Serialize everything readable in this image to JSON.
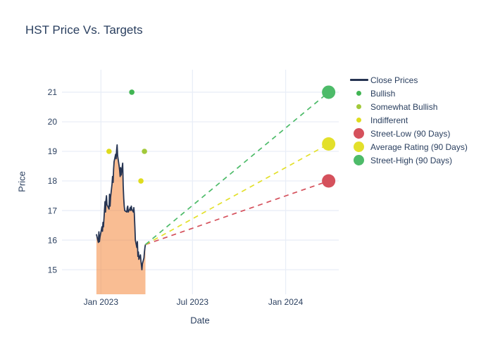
{
  "header": {
    "title": "HST Price Vs. Targets"
  },
  "axes": {
    "x_title": "Date",
    "y_title": "Price"
  },
  "colors": {
    "background": "#ffffff",
    "text": "#2a3f5f",
    "grid": "#e9eef7",
    "close_line": "#263452",
    "area_fill_rgba": "rgba(244,135,59,0.55)",
    "bullish": "#41b553",
    "somewhat_bullish": "#a2c93a",
    "indifferent": "#dfdc1e",
    "street_low": "#d5515c",
    "average_rating": "#e3e02b",
    "street_high": "#4dbb69"
  },
  "legend": {
    "items": [
      {
        "label": "Close Prices",
        "type": "line",
        "color": "#263452"
      },
      {
        "label": "Bullish",
        "type": "dot-small",
        "color": "#41b553"
      },
      {
        "label": "Somewhat Bullish",
        "type": "dot-small",
        "color": "#a2c93a"
      },
      {
        "label": "Indifferent",
        "type": "dot-small",
        "color": "#dfdc1e"
      },
      {
        "label": "Street-Low (90 Days)",
        "type": "dot-large",
        "color": "#d5515c"
      },
      {
        "label": "Average Rating (90 Days)",
        "type": "dot-large",
        "color": "#e3e02b"
      },
      {
        "label": "Street-High (90 Days)",
        "type": "dot-large",
        "color": "#4dbb69"
      }
    ]
  },
  "chart_data": {
    "type": "line",
    "title": "HST Price Vs. Targets",
    "xlabel": "Date",
    "ylabel": "Price",
    "grid": true,
    "legend_position": "right",
    "y_ticks": [
      15,
      16,
      17,
      18,
      19,
      20,
      21
    ],
    "ylim": [
      14.17,
      21.76
    ],
    "x_tick_labels": [
      "Jan 2023",
      "Jul 2023",
      "Jan 2024"
    ],
    "x_tick_dates": [
      "2023-01-01",
      "2023-07-01",
      "2024-01-01"
    ],
    "xlim_dates": [
      "2022-10-16",
      "2024-04-15"
    ],
    "close_prices": {
      "name": "Close Prices",
      "points": [
        [
          "2022-12-23",
          16.2
        ],
        [
          "2022-12-27",
          15.92
        ],
        [
          "2022-12-28",
          16.28
        ],
        [
          "2022-12-29",
          15.95
        ],
        [
          "2022-12-30",
          16.1
        ],
        [
          "2023-01-03",
          16.45
        ],
        [
          "2023-01-04",
          16.3
        ],
        [
          "2023-01-05",
          16.6
        ],
        [
          "2023-01-06",
          16.45
        ],
        [
          "2023-01-09",
          17.3
        ],
        [
          "2023-01-10",
          16.95
        ],
        [
          "2023-01-11",
          17.35
        ],
        [
          "2023-01-12",
          17.5
        ],
        [
          "2023-01-13",
          17.2
        ],
        [
          "2023-01-17",
          17.05
        ],
        [
          "2023-01-18",
          17.55
        ],
        [
          "2023-01-19",
          17.15
        ],
        [
          "2023-01-20",
          17.45
        ],
        [
          "2023-01-23",
          17.9
        ],
        [
          "2023-01-24",
          18.15
        ],
        [
          "2023-01-25",
          17.95
        ],
        [
          "2023-01-26",
          18.4
        ],
        [
          "2023-01-27",
          18.65
        ],
        [
          "2023-01-30",
          18.9
        ],
        [
          "2023-01-31",
          18.75
        ],
        [
          "2023-02-01",
          19.05
        ],
        [
          "2023-02-02",
          19.22
        ],
        [
          "2023-02-03",
          18.85
        ],
        [
          "2023-02-06",
          18.5
        ],
        [
          "2023-02-07",
          18.35
        ],
        [
          "2023-02-08",
          18.15
        ],
        [
          "2023-02-09",
          18.45
        ],
        [
          "2023-02-10",
          18.2
        ],
        [
          "2023-02-13",
          18.6
        ],
        [
          "2023-02-14",
          17.85
        ],
        [
          "2023-02-15",
          17.4
        ],
        [
          "2023-02-16",
          17.15
        ],
        [
          "2023-02-17",
          17.0
        ],
        [
          "2023-02-21",
          16.95
        ],
        [
          "2023-02-22",
          17.1
        ],
        [
          "2023-02-23",
          17.15
        ],
        [
          "2023-02-24",
          16.95
        ],
        [
          "2023-02-27",
          17.05
        ],
        [
          "2023-02-28",
          17.1
        ],
        [
          "2023-03-01",
          17.0
        ],
        [
          "2023-03-02",
          17.15
        ],
        [
          "2023-03-03",
          17.05
        ],
        [
          "2023-03-06",
          16.95
        ],
        [
          "2023-03-07",
          17.1
        ],
        [
          "2023-03-08",
          16.9
        ],
        [
          "2023-03-09",
          16.45
        ],
        [
          "2023-03-10",
          16.0
        ],
        [
          "2023-03-13",
          15.75
        ],
        [
          "2023-03-14",
          15.95
        ],
        [
          "2023-03-15",
          15.45
        ],
        [
          "2023-03-16",
          15.6
        ],
        [
          "2023-03-17",
          15.35
        ],
        [
          "2023-03-20",
          15.5
        ],
        [
          "2023-03-21",
          15.3
        ],
        [
          "2023-03-22",
          15.15
        ],
        [
          "2023-03-23",
          15.0
        ],
        [
          "2023-03-24",
          15.2
        ],
        [
          "2023-03-27",
          15.4
        ],
        [
          "2023-03-28",
          15.6
        ],
        [
          "2023-03-29",
          15.75
        ],
        [
          "2023-03-30",
          15.85
        ]
      ]
    },
    "ratings": [
      {
        "label": "Indifferent",
        "date": "2023-01-17",
        "price": 19
      },
      {
        "label": "Bullish",
        "date": "2023-03-03",
        "price": 21
      },
      {
        "label": "Indifferent",
        "date": "2023-03-21",
        "price": 18
      },
      {
        "label": "Somewhat Bullish",
        "date": "2023-03-28",
        "price": 19
      }
    ],
    "targets": [
      {
        "label": "Street-Low (90 Days)",
        "date": "2024-03-26",
        "price": 18
      },
      {
        "label": "Average Rating (90 Days)",
        "date": "2024-03-26",
        "price": 19.25
      },
      {
        "label": "Street-High (90 Days)",
        "date": "2024-03-26",
        "price": 21
      }
    ]
  }
}
